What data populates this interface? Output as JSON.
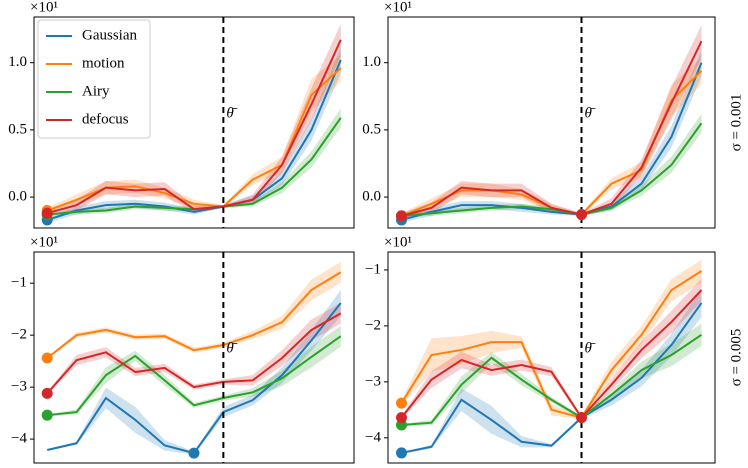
{
  "chart_data": [
    {
      "type": "line",
      "offset_text": "×10¹",
      "x": [
        0,
        1,
        2,
        3,
        4,
        5,
        6,
        7,
        8,
        9,
        10
      ],
      "xlim": [
        -0.45,
        10.45
      ],
      "ylim": [
        -0.23,
        1.34
      ],
      "yticks": [
        {
          "value": 0,
          "label": "0.0"
        },
        0.5,
        {
          "value": 1,
          "label": "1.0"
        }
      ],
      "vline": {
        "x": 6,
        "label": "θ̄"
      },
      "legend": "upper left",
      "series": [
        {
          "name": "Gaussian",
          "color": "#1f77b4",
          "values": [
            -0.17,
            -0.1,
            -0.06,
            -0.05,
            -0.07,
            -0.11,
            -0.07,
            -0.02,
            0.14,
            0.5,
            1.02
          ],
          "errors": [
            0.02,
            0.03,
            0.03,
            0.03,
            0.03,
            0.02,
            0.01,
            0.03,
            0.05,
            0.08,
            0.1
          ],
          "markers": [
            0
          ]
        },
        {
          "name": "motion",
          "color": "#ff7f0e",
          "values": [
            -0.1,
            -0.02,
            0.07,
            0.08,
            0.03,
            -0.05,
            -0.07,
            0.13,
            0.24,
            0.76,
            0.96
          ],
          "errors": [
            0.02,
            0.04,
            0.05,
            0.05,
            0.04,
            0.03,
            0.01,
            0.04,
            0.06,
            0.12,
            0.1
          ],
          "markers": [
            0
          ]
        },
        {
          "name": "Airy",
          "color": "#2ca02c",
          "values": [
            -0.13,
            -0.11,
            -0.1,
            -0.07,
            -0.08,
            -0.09,
            -0.07,
            -0.05,
            0.07,
            0.28,
            0.59
          ],
          "errors": [
            0.01,
            0.02,
            0.02,
            0.02,
            0.02,
            0.02,
            0.01,
            0.02,
            0.04,
            0.06,
            0.07
          ],
          "markers": [
            0
          ]
        },
        {
          "name": "defocus",
          "color": "#d62728",
          "values": [
            -0.12,
            -0.06,
            0.07,
            0.05,
            0.06,
            -0.09,
            -0.07,
            -0.02,
            0.24,
            0.69,
            1.17
          ],
          "errors": [
            0.02,
            0.04,
            0.05,
            0.05,
            0.05,
            0.03,
            0.01,
            0.04,
            0.06,
            0.12,
            0.12
          ],
          "markers": [
            0
          ]
        }
      ]
    },
    {
      "type": "line",
      "offset_text": "×10¹",
      "x": [
        0,
        1,
        2,
        3,
        4,
        5,
        6,
        7,
        8,
        9,
        10
      ],
      "xlim": [
        -0.45,
        10.45
      ],
      "ylim": [
        -0.23,
        1.34
      ],
      "yticks": [
        {
          "value": 0,
          "label": "0.0"
        },
        0.5,
        {
          "value": 1,
          "label": "1.0"
        }
      ],
      "vline": {
        "x": 6,
        "label": "θ̄"
      },
      "row_label": "σ = 0.001",
      "series": [
        {
          "name": "Gaussian",
          "color": "#1f77b4",
          "values": [
            -0.17,
            -0.11,
            -0.06,
            -0.06,
            -0.08,
            -0.11,
            -0.13,
            -0.07,
            0.1,
            0.45,
            1.0
          ],
          "errors": [
            0.02,
            0.03,
            0.03,
            0.03,
            0.03,
            0.02,
            0.01,
            0.03,
            0.05,
            0.08,
            0.1
          ],
          "markers": [
            0
          ]
        },
        {
          "name": "motion",
          "color": "#ff7f0e",
          "values": [
            -0.14,
            -0.05,
            0.05,
            0.05,
            0.02,
            -0.08,
            -0.13,
            0.1,
            0.2,
            0.72,
            0.94
          ],
          "errors": [
            0.02,
            0.04,
            0.05,
            0.05,
            0.04,
            0.03,
            0.01,
            0.04,
            0.06,
            0.12,
            0.1
          ],
          "markers": [
            0
          ]
        },
        {
          "name": "Airy",
          "color": "#2ca02c",
          "values": [
            -0.14,
            -0.12,
            -0.1,
            -0.08,
            -0.07,
            -0.09,
            -0.13,
            -0.08,
            0.05,
            0.24,
            0.55
          ],
          "errors": [
            0.01,
            0.02,
            0.02,
            0.02,
            0.02,
            0.02,
            0.01,
            0.02,
            0.04,
            0.06,
            0.07
          ],
          "markers": [
            0
          ]
        },
        {
          "name": "defocus",
          "color": "#d62728",
          "values": [
            -0.14,
            -0.08,
            0.07,
            0.05,
            0.05,
            -0.08,
            -0.13,
            -0.05,
            0.22,
            0.7,
            1.16
          ],
          "errors": [
            0.02,
            0.04,
            0.05,
            0.05,
            0.05,
            0.03,
            0.01,
            0.04,
            0.06,
            0.12,
            0.12
          ],
          "markers": [
            0,
            6
          ]
        }
      ]
    },
    {
      "type": "line",
      "offset_text": "×10¹",
      "x": [
        0,
        1,
        2,
        3,
        4,
        5,
        6,
        7,
        8,
        9,
        10
      ],
      "xlim": [
        -0.45,
        10.45
      ],
      "ylim": [
        -4.46,
        -0.4
      ],
      "yticks": [
        {
          "value": -4,
          "label": "−4"
        },
        {
          "value": -3,
          "label": "−3"
        },
        {
          "value": -2,
          "label": "−2"
        },
        {
          "value": -1,
          "label": "−1"
        }
      ],
      "vline": {
        "x": 6,
        "label": "θ̄"
      },
      "series": [
        {
          "name": "Gaussian",
          "color": "#1f77b4",
          "values": [
            -4.21,
            -4.08,
            -3.21,
            -3.63,
            -4.12,
            -4.27,
            -3.48,
            -3.25,
            -2.77,
            -2.1,
            -1.38
          ],
          "errors": [
            0.02,
            0.03,
            0.2,
            0.25,
            0.1,
            0.03,
            0.1,
            0.1,
            0.15,
            0.2,
            0.25
          ],
          "markers": [
            5
          ]
        },
        {
          "name": "motion",
          "color": "#ff7f0e",
          "values": [
            -2.44,
            -2.0,
            -1.9,
            -2.04,
            -2.02,
            -2.29,
            -2.19,
            -2.0,
            -1.75,
            -1.13,
            -0.79
          ],
          "errors": [
            0.02,
            0.05,
            0.05,
            0.05,
            0.05,
            0.05,
            0.05,
            0.08,
            0.12,
            0.2,
            0.2
          ],
          "markers": [
            0
          ]
        },
        {
          "name": "Airy",
          "color": "#2ca02c",
          "values": [
            -3.54,
            -3.48,
            -2.77,
            -2.4,
            -2.87,
            -3.35,
            -3.21,
            -3.1,
            -2.83,
            -2.42,
            -2.02
          ],
          "errors": [
            0.02,
            0.05,
            0.15,
            0.1,
            0.1,
            0.05,
            0.05,
            0.08,
            0.15,
            0.2,
            0.2
          ],
          "markers": [
            0
          ]
        },
        {
          "name": "defocus",
          "color": "#d62728",
          "values": [
            -3.12,
            -2.48,
            -2.33,
            -2.71,
            -2.63,
            -3.0,
            -2.9,
            -2.87,
            -2.44,
            -1.9,
            -1.58
          ],
          "errors": [
            0.02,
            0.1,
            0.1,
            0.08,
            0.08,
            0.05,
            0.05,
            0.1,
            0.15,
            0.2,
            0.2
          ],
          "markers": [
            0
          ]
        }
      ]
    },
    {
      "type": "line",
      "offset_text": "×10¹",
      "x": [
        0,
        1,
        2,
        3,
        4,
        5,
        6,
        7,
        8,
        9,
        10
      ],
      "xlim": [
        -0.45,
        10.45
      ],
      "ylim": [
        -4.45,
        -0.68
      ],
      "yticks": [
        {
          "value": -4,
          "label": "−4"
        },
        {
          "value": -3,
          "label": "−3"
        },
        {
          "value": -2,
          "label": "−2"
        },
        {
          "value": -1,
          "label": "−1"
        }
      ],
      "vline": {
        "x": 6,
        "label": "θ̄"
      },
      "row_label": "σ = 0.005",
      "series": [
        {
          "name": "Gaussian",
          "color": "#1f77b4",
          "values": [
            -4.27,
            -4.16,
            -3.32,
            -3.68,
            -4.07,
            -4.14,
            -3.64,
            -3.32,
            -2.93,
            -2.34,
            -1.59
          ],
          "errors": [
            0.02,
            0.03,
            0.2,
            0.25,
            0.1,
            0.03,
            0.03,
            0.1,
            0.15,
            0.2,
            0.25
          ],
          "markers": [
            0
          ]
        },
        {
          "name": "motion",
          "color": "#ff7f0e",
          "values": [
            -3.38,
            -2.52,
            -2.43,
            -2.29,
            -2.29,
            -3.5,
            -3.64,
            -2.79,
            -2.16,
            -1.36,
            -1.02
          ],
          "errors": [
            0.05,
            0.3,
            0.25,
            0.2,
            0.1,
            0.1,
            0.03,
            0.15,
            0.15,
            0.2,
            0.2
          ],
          "markers": [
            0
          ]
        },
        {
          "name": "Airy",
          "color": "#2ca02c",
          "values": [
            -3.77,
            -3.73,
            -3.05,
            -2.57,
            -2.96,
            -3.32,
            -3.64,
            -3.23,
            -2.79,
            -2.52,
            -2.16
          ],
          "errors": [
            0.02,
            0.05,
            0.15,
            0.1,
            0.1,
            0.05,
            0.03,
            0.08,
            0.15,
            0.2,
            0.2
          ],
          "markers": [
            0
          ]
        },
        {
          "name": "defocus",
          "color": "#d62728",
          "values": [
            -3.64,
            -2.96,
            -2.61,
            -2.79,
            -2.7,
            -2.82,
            -3.64,
            -3.05,
            -2.43,
            -1.93,
            -1.36
          ],
          "errors": [
            0.03,
            0.15,
            0.15,
            0.1,
            0.1,
            0.08,
            0.03,
            0.1,
            0.15,
            0.2,
            0.2
          ],
          "markers": [
            0,
            6
          ]
        }
      ]
    }
  ]
}
